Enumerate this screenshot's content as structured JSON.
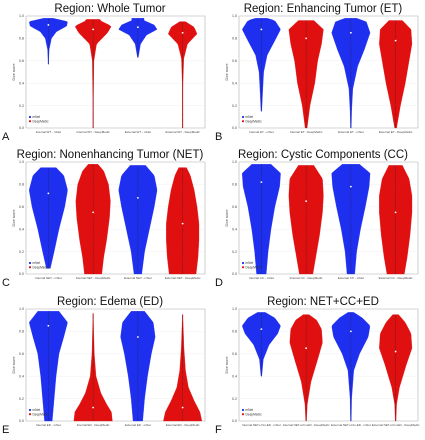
{
  "colors": {
    "mnet": "#1f2ff0",
    "deepmedic": "#e01010",
    "axis": "#888888",
    "grid": "#e6e6e6"
  },
  "chart_data": [
    {
      "type": "violin",
      "panel_letter": "A",
      "title": "Region: Whole Tumor",
      "ylabel": "Dice score",
      "ylim": [
        0,
        1.0
      ],
      "yticks": [
        "0.0",
        "0.2",
        "0.4",
        "0.6",
        "0.8",
        "1.0"
      ],
      "legend": [
        "mNet",
        "DeepMedic"
      ],
      "legend_placement": "bottom-left",
      "categories": [
        "Internal WT - mNet",
        "Internal WT - DeepMedic",
        "External WT - mNet",
        "External WT - DeepMedic"
      ],
      "series_color": [
        "mnet",
        "deepmedic",
        "mnet",
        "deepmedic"
      ],
      "distributions": [
        {
          "min": 0.57,
          "max": 0.98,
          "median": 0.92,
          "profile": [
            [
              0.57,
              0.01
            ],
            [
              0.7,
              0.04
            ],
            [
              0.8,
              0.16
            ],
            [
              0.86,
              0.42
            ],
            [
              0.91,
              0.95
            ],
            [
              0.95,
              1.0
            ],
            [
              0.98,
              0.25
            ]
          ]
        },
        {
          "min": 0.0,
          "max": 0.97,
          "median": 0.88,
          "profile": [
            [
              0.0,
              0.01
            ],
            [
              0.3,
              0.02
            ],
            [
              0.6,
              0.04
            ],
            [
              0.75,
              0.18
            ],
            [
              0.85,
              0.75
            ],
            [
              0.91,
              0.95
            ],
            [
              0.96,
              0.35
            ]
          ]
        },
        {
          "min": 0.63,
          "max": 0.98,
          "median": 0.9,
          "profile": [
            [
              0.63,
              0.02
            ],
            [
              0.75,
              0.14
            ],
            [
              0.83,
              0.45
            ],
            [
              0.88,
              1.0
            ],
            [
              0.92,
              0.85
            ],
            [
              0.96,
              0.32
            ]
          ]
        },
        {
          "min": 0.0,
          "max": 0.95,
          "median": 0.85,
          "profile": [
            [
              0.0,
              0.01
            ],
            [
              0.4,
              0.02
            ],
            [
              0.62,
              0.06
            ],
            [
              0.75,
              0.25
            ],
            [
              0.84,
              0.75
            ],
            [
              0.9,
              0.6
            ],
            [
              0.95,
              0.15
            ]
          ]
        }
      ]
    },
    {
      "type": "violin",
      "panel_letter": "B",
      "title": "Region: Enhancing Tumor (ET)",
      "ylabel": "Dice score",
      "ylim": [
        0,
        1.0
      ],
      "yticks": [
        "0.0",
        "0.2",
        "0.4",
        "0.6",
        "0.8",
        "1.0"
      ],
      "legend": [
        "mNet",
        "DeepMedic"
      ],
      "legend_placement": "bottom-left",
      "categories": [
        "Internal ET - mNet",
        "Internal ET - DeepMedic",
        "External ET - mNet",
        "External ET - DeepMedic"
      ],
      "series_color": [
        "mnet",
        "deepmedic",
        "mnet",
        "deepmedic"
      ],
      "distributions": [
        {
          "min": 0.15,
          "max": 0.98,
          "median": 0.88,
          "profile": [
            [
              0.15,
              0.02
            ],
            [
              0.3,
              0.06
            ],
            [
              0.5,
              0.12
            ],
            [
              0.65,
              0.3
            ],
            [
              0.78,
              0.7
            ],
            [
              0.88,
              1.0
            ],
            [
              0.96,
              0.7
            ],
            [
              0.98,
              0.3
            ]
          ]
        },
        {
          "min": 0.0,
          "max": 0.96,
          "median": 0.8,
          "profile": [
            [
              0.0,
              0.05
            ],
            [
              0.2,
              0.2
            ],
            [
              0.4,
              0.45
            ],
            [
              0.6,
              0.6
            ],
            [
              0.75,
              0.8
            ],
            [
              0.88,
              0.9
            ],
            [
              0.96,
              0.4
            ]
          ]
        },
        {
          "min": 0.0,
          "max": 0.98,
          "median": 0.85,
          "profile": [
            [
              0.0,
              0.02
            ],
            [
              0.15,
              0.04
            ],
            [
              0.35,
              0.1
            ],
            [
              0.55,
              0.35
            ],
            [
              0.7,
              0.7
            ],
            [
              0.85,
              1.0
            ],
            [
              0.95,
              0.8
            ],
            [
              0.98,
              0.3
            ]
          ]
        },
        {
          "min": 0.0,
          "max": 0.96,
          "median": 0.78,
          "profile": [
            [
              0.0,
              0.05
            ],
            [
              0.2,
              0.25
            ],
            [
              0.4,
              0.5
            ],
            [
              0.6,
              0.7
            ],
            [
              0.75,
              0.85
            ],
            [
              0.88,
              0.8
            ],
            [
              0.96,
              0.35
            ]
          ]
        }
      ]
    },
    {
      "type": "violin",
      "panel_letter": "C",
      "title": "Region: Nonenhancing Tumor (NET)",
      "ylabel": "Dice score",
      "ylim": [
        0,
        1.0
      ],
      "yticks": [
        "0.0",
        "0.2",
        "0.4",
        "0.6",
        "0.8",
        "1.0"
      ],
      "legend": [
        "mNet",
        "DeepMedic"
      ],
      "legend_placement": "bottom-left",
      "categories": [
        "Internal NET - mNet",
        "Internal NET - DeepMedic",
        "External NET - mNet",
        "External NET - DeepMedic"
      ],
      "series_color": [
        "mnet",
        "deepmedic",
        "mnet",
        "deepmedic"
      ],
      "distributions": [
        {
          "min": 0.05,
          "max": 0.95,
          "median": 0.72,
          "profile": [
            [
              0.05,
              0.1
            ],
            [
              0.2,
              0.3
            ],
            [
              0.4,
              0.55
            ],
            [
              0.6,
              0.85
            ],
            [
              0.75,
              1.0
            ],
            [
              0.88,
              0.8
            ],
            [
              0.95,
              0.4
            ]
          ]
        },
        {
          "min": 0.0,
          "max": 0.98,
          "median": 0.55,
          "profile": [
            [
              0.0,
              0.45
            ],
            [
              0.15,
              0.55
            ],
            [
              0.3,
              0.7
            ],
            [
              0.5,
              0.85
            ],
            [
              0.65,
              0.9
            ],
            [
              0.8,
              0.8
            ],
            [
              0.92,
              0.55
            ],
            [
              0.98,
              0.25
            ]
          ]
        },
        {
          "min": 0.0,
          "max": 0.97,
          "median": 0.68,
          "profile": [
            [
              0.0,
              0.2
            ],
            [
              0.2,
              0.35
            ],
            [
              0.4,
              0.6
            ],
            [
              0.6,
              0.85
            ],
            [
              0.75,
              1.0
            ],
            [
              0.88,
              0.85
            ],
            [
              0.97,
              0.4
            ]
          ]
        },
        {
          "min": 0.0,
          "max": 0.95,
          "median": 0.45,
          "profile": [
            [
              0.0,
              0.7
            ],
            [
              0.15,
              0.8
            ],
            [
              0.3,
              0.85
            ],
            [
              0.45,
              0.85
            ],
            [
              0.6,
              0.75
            ],
            [
              0.75,
              0.6
            ],
            [
              0.88,
              0.4
            ],
            [
              0.95,
              0.2
            ]
          ]
        }
      ]
    },
    {
      "type": "violin",
      "panel_letter": "D",
      "title": "Region: Cystic Components (CC)",
      "ylabel": "Dice score",
      "ylim": [
        0,
        1.0
      ],
      "yticks": [
        "0.0",
        "0.2",
        "0.4",
        "0.6",
        "0.8",
        "1.0"
      ],
      "legend": [
        "mNet",
        "DeepMedic"
      ],
      "legend_placement": "bottom-left",
      "categories": [
        "Internal CC - mNet",
        "Internal CC - DeepMedic",
        "External CC - mNet",
        "External CC - DeepMedic"
      ],
      "series_color": [
        "mnet",
        "deepmedic",
        "mnet",
        "deepmedic"
      ],
      "distributions": [
        {
          "min": 0.0,
          "max": 0.98,
          "median": 0.82,
          "profile": [
            [
              0.0,
              0.25
            ],
            [
              0.2,
              0.35
            ],
            [
              0.4,
              0.5
            ],
            [
              0.6,
              0.7
            ],
            [
              0.78,
              0.95
            ],
            [
              0.9,
              1.0
            ],
            [
              0.98,
              0.5
            ]
          ]
        },
        {
          "min": 0.0,
          "max": 0.97,
          "median": 0.65,
          "profile": [
            [
              0.0,
              0.35
            ],
            [
              0.15,
              0.5
            ],
            [
              0.35,
              0.7
            ],
            [
              0.55,
              0.85
            ],
            [
              0.7,
              0.9
            ],
            [
              0.85,
              0.85
            ],
            [
              0.97,
              0.4
            ]
          ]
        },
        {
          "min": 0.0,
          "max": 0.98,
          "median": 0.78,
          "profile": [
            [
              0.0,
              0.2
            ],
            [
              0.2,
              0.3
            ],
            [
              0.4,
              0.5
            ],
            [
              0.6,
              0.75
            ],
            [
              0.78,
              0.95
            ],
            [
              0.9,
              1.0
            ],
            [
              0.98,
              0.45
            ]
          ]
        },
        {
          "min": 0.0,
          "max": 0.97,
          "median": 0.55,
          "profile": [
            [
              0.0,
              0.45
            ],
            [
              0.15,
              0.6
            ],
            [
              0.35,
              0.75
            ],
            [
              0.55,
              0.85
            ],
            [
              0.7,
              0.85
            ],
            [
              0.85,
              0.7
            ],
            [
              0.97,
              0.35
            ]
          ]
        }
      ]
    },
    {
      "type": "violin",
      "panel_letter": "E",
      "title": "Region: Edema (ED)",
      "ylabel": "Dice score",
      "ylim": [
        0,
        1.0
      ],
      "yticks": [
        "0.0",
        "0.2",
        "0.4",
        "0.6",
        "0.8",
        "1.0"
      ],
      "legend": [
        "mNet",
        "DeepMedic"
      ],
      "legend_placement": "bottom-left",
      "categories": [
        "Internal ED - mNet",
        "Internal ED - DeepMedic",
        "External ED - mNet",
        "External ED - DeepMedic"
      ],
      "series_color": [
        "mnet",
        "deepmedic",
        "mnet",
        "deepmedic"
      ],
      "distributions": [
        {
          "min": 0.0,
          "max": 0.98,
          "median": 0.85,
          "profile": [
            [
              0.0,
              0.2
            ],
            [
              0.2,
              0.3
            ],
            [
              0.4,
              0.4
            ],
            [
              0.6,
              0.55
            ],
            [
              0.75,
              0.8
            ],
            [
              0.88,
              1.0
            ],
            [
              0.98,
              0.55
            ]
          ]
        },
        {
          "min": 0.0,
          "max": 0.96,
          "median": 0.12,
          "profile": [
            [
              0.0,
              1.0
            ],
            [
              0.08,
              0.95
            ],
            [
              0.15,
              0.7
            ],
            [
              0.25,
              0.4
            ],
            [
              0.4,
              0.15
            ],
            [
              0.6,
              0.06
            ],
            [
              0.8,
              0.03
            ],
            [
              0.96,
              0.01
            ]
          ]
        },
        {
          "min": 0.0,
          "max": 0.98,
          "median": 0.75,
          "profile": [
            [
              0.0,
              0.25
            ],
            [
              0.2,
              0.35
            ],
            [
              0.4,
              0.5
            ],
            [
              0.6,
              0.7
            ],
            [
              0.75,
              0.9
            ],
            [
              0.88,
              0.8
            ],
            [
              0.98,
              0.35
            ]
          ]
        },
        {
          "min": 0.0,
          "max": 0.95,
          "median": 0.12,
          "profile": [
            [
              0.0,
              1.0
            ],
            [
              0.08,
              0.9
            ],
            [
              0.18,
              0.6
            ],
            [
              0.3,
              0.3
            ],
            [
              0.45,
              0.15
            ],
            [
              0.65,
              0.07
            ],
            [
              0.85,
              0.03
            ],
            [
              0.95,
              0.01
            ]
          ]
        }
      ]
    },
    {
      "type": "violin",
      "panel_letter": "F",
      "title": "Region: NET+CC+ED",
      "ylabel": "Dice score",
      "ylim": [
        0,
        1.0
      ],
      "yticks": [
        "0.0",
        "0.2",
        "0.4",
        "0.6",
        "0.8",
        "1.0"
      ],
      "legend": [
        "mNet",
        "DeepMedic"
      ],
      "legend_placement": "bottom-left",
      "categories": [
        "Internal NET+CC+ED - mNet",
        "Internal NET+CC+ED - DeepMedic",
        "External NET+CC+ED - mNet",
        "External NET+CC+ED - DeepMedic"
      ],
      "series_color": [
        "mnet",
        "deepmedic",
        "mnet",
        "deepmedic"
      ],
      "distributions": [
        {
          "min": 0.4,
          "max": 0.97,
          "median": 0.82,
          "profile": [
            [
              0.4,
              0.02
            ],
            [
              0.55,
              0.1
            ],
            [
              0.68,
              0.4
            ],
            [
              0.78,
              0.85
            ],
            [
              0.85,
              1.0
            ],
            [
              0.92,
              0.7
            ],
            [
              0.97,
              0.2
            ]
          ]
        },
        {
          "min": 0.0,
          "max": 0.95,
          "median": 0.65,
          "profile": [
            [
              0.0,
              0.02
            ],
            [
              0.15,
              0.06
            ],
            [
              0.35,
              0.25
            ],
            [
              0.55,
              0.6
            ],
            [
              0.7,
              0.85
            ],
            [
              0.82,
              0.8
            ],
            [
              0.9,
              0.55
            ],
            [
              0.95,
              0.15
            ]
          ]
        },
        {
          "min": 0.0,
          "max": 0.97,
          "median": 0.8,
          "profile": [
            [
              0.0,
              0.02
            ],
            [
              0.2,
              0.04
            ],
            [
              0.45,
              0.15
            ],
            [
              0.6,
              0.45
            ],
            [
              0.75,
              0.9
            ],
            [
              0.85,
              1.0
            ],
            [
              0.92,
              0.6
            ],
            [
              0.97,
              0.15
            ]
          ]
        },
        {
          "min": 0.0,
          "max": 0.95,
          "median": 0.62,
          "profile": [
            [
              0.0,
              0.02
            ],
            [
              0.15,
              0.05
            ],
            [
              0.3,
              0.2
            ],
            [
              0.5,
              0.55
            ],
            [
              0.65,
              0.85
            ],
            [
              0.78,
              0.8
            ],
            [
              0.88,
              0.5
            ],
            [
              0.95,
              0.15
            ]
          ]
        }
      ]
    }
  ]
}
